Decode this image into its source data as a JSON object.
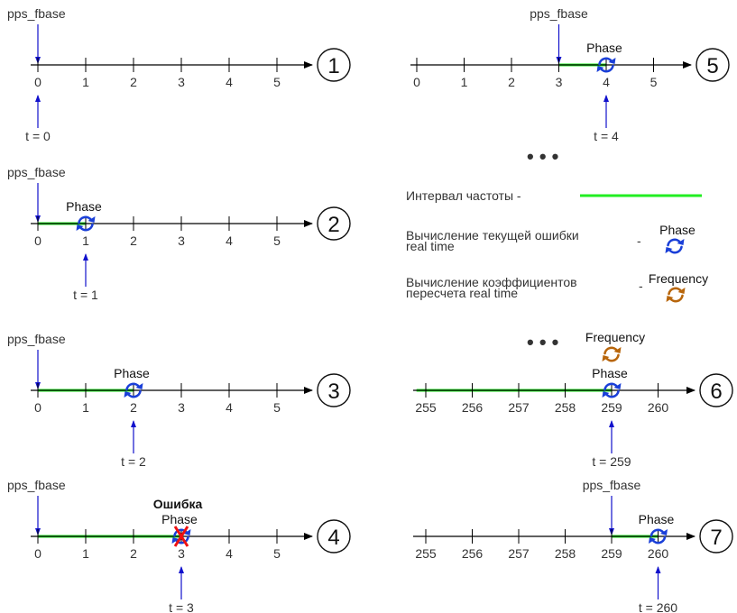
{
  "colors": {
    "interval": "#22ee22",
    "marker": "#1111cc",
    "phase_icon": "#1a3fd8",
    "frequency_icon": "#b8660c",
    "error": "#ee1111",
    "axis": "#000000"
  },
  "panels": [
    {
      "number": "1",
      "ticks": [
        "0",
        "1",
        "2",
        "3",
        "4",
        "5"
      ],
      "pps_label": "pps_fbase",
      "pps_at": 0,
      "interval": null,
      "phase": null,
      "frequency": null,
      "error_label": null,
      "t_label": "t = 0",
      "t_at": 0
    },
    {
      "number": "2",
      "ticks": [
        "0",
        "1",
        "2",
        "3",
        "4",
        "5"
      ],
      "pps_label": "pps_fbase",
      "pps_at": 0,
      "interval": [
        0,
        1
      ],
      "phase": {
        "label": "Phase",
        "at": 1
      },
      "frequency": null,
      "error_label": null,
      "t_label": "t = 1",
      "t_at": 1
    },
    {
      "number": "3",
      "ticks": [
        "0",
        "1",
        "2",
        "3",
        "4",
        "5"
      ],
      "pps_label": "pps_fbase",
      "pps_at": 0,
      "interval": [
        0,
        2
      ],
      "phase": {
        "label": "Phase",
        "at": 2
      },
      "frequency": null,
      "error_label": null,
      "t_label": "t = 2",
      "t_at": 2
    },
    {
      "number": "4",
      "ticks": [
        "0",
        "1",
        "2",
        "3",
        "4",
        "5"
      ],
      "pps_label": "pps_fbase",
      "pps_at": 0,
      "interval": [
        0,
        3
      ],
      "phase": {
        "label": "Phase",
        "at": 3
      },
      "frequency": null,
      "error_label": "Ошибка",
      "t_label": "t = 3",
      "t_at": 3
    },
    {
      "number": "5",
      "ticks": [
        "0",
        "1",
        "2",
        "3",
        "4",
        "5"
      ],
      "pps_label": "pps_fbase",
      "pps_at": 3,
      "interval": [
        3,
        4
      ],
      "phase": {
        "label": "Phase",
        "at": 4
      },
      "frequency": null,
      "error_label": null,
      "t_label": "t = 4",
      "t_at": 4
    },
    {
      "number": "6",
      "ticks": [
        "255",
        "256",
        "257",
        "258",
        "259",
        "260"
      ],
      "pps_label": null,
      "pps_at": null,
      "interval": [
        -0.2,
        4
      ],
      "phase": {
        "label": "Phase",
        "at": 4
      },
      "frequency": {
        "label": "Frequency",
        "at": 4
      },
      "error_label": null,
      "t_label": "t = 259",
      "t_at": 4
    },
    {
      "number": "7",
      "ticks": [
        "255",
        "256",
        "257",
        "258",
        "259",
        "260"
      ],
      "pps_label": "pps_fbase",
      "pps_at": 4,
      "interval": [
        4,
        5
      ],
      "phase": {
        "label": "Phase",
        "at": 5
      },
      "frequency": null,
      "error_label": null,
      "t_label": "t = 260",
      "t_at": 5
    }
  ],
  "ellipsis": [
    "• • •",
    "• • •"
  ],
  "legend": {
    "interval_label": "Интервал частоты -",
    "phase_label_line1": "Вычисление текущей ошибки",
    "phase_label_line2": "real time",
    "phase_dash": "-",
    "phase_icon_caption": "Phase",
    "frequency_label_line1": "Вычисление коэффициентов",
    "frequency_label_line2": "пересчета real time",
    "frequency_dash": "-",
    "frequency_icon_caption": "Frequency"
  }
}
